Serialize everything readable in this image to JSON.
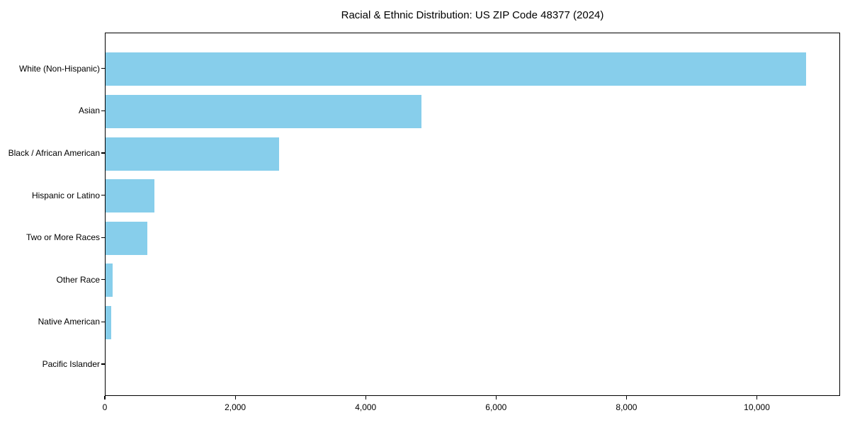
{
  "chart_data": {
    "type": "bar",
    "orientation": "horizontal",
    "title": "Racial & Ethnic Distribution: US ZIP Code 48377 (2024)",
    "categories": [
      "White (Non-Hispanic)",
      "Asian",
      "Black / African American",
      "Hispanic or Latino",
      "Two or More Races",
      "Other Race",
      "Native American",
      "Pacific Islander"
    ],
    "values": [
      10740,
      4840,
      2660,
      750,
      645,
      105,
      90,
      0
    ],
    "xlabel": "",
    "ylabel": "",
    "xlim": [
      0,
      11276
    ],
    "xticks": [
      0,
      2000,
      4000,
      6000,
      8000,
      10000
    ],
    "xtick_labels": [
      "0",
      "2,000",
      "4,000",
      "6,000",
      "8,000",
      "10,000"
    ],
    "bar_color": "#87CEEB",
    "grid": false,
    "legend": null,
    "categories_order": "largest value at top, zero baseline at left"
  }
}
